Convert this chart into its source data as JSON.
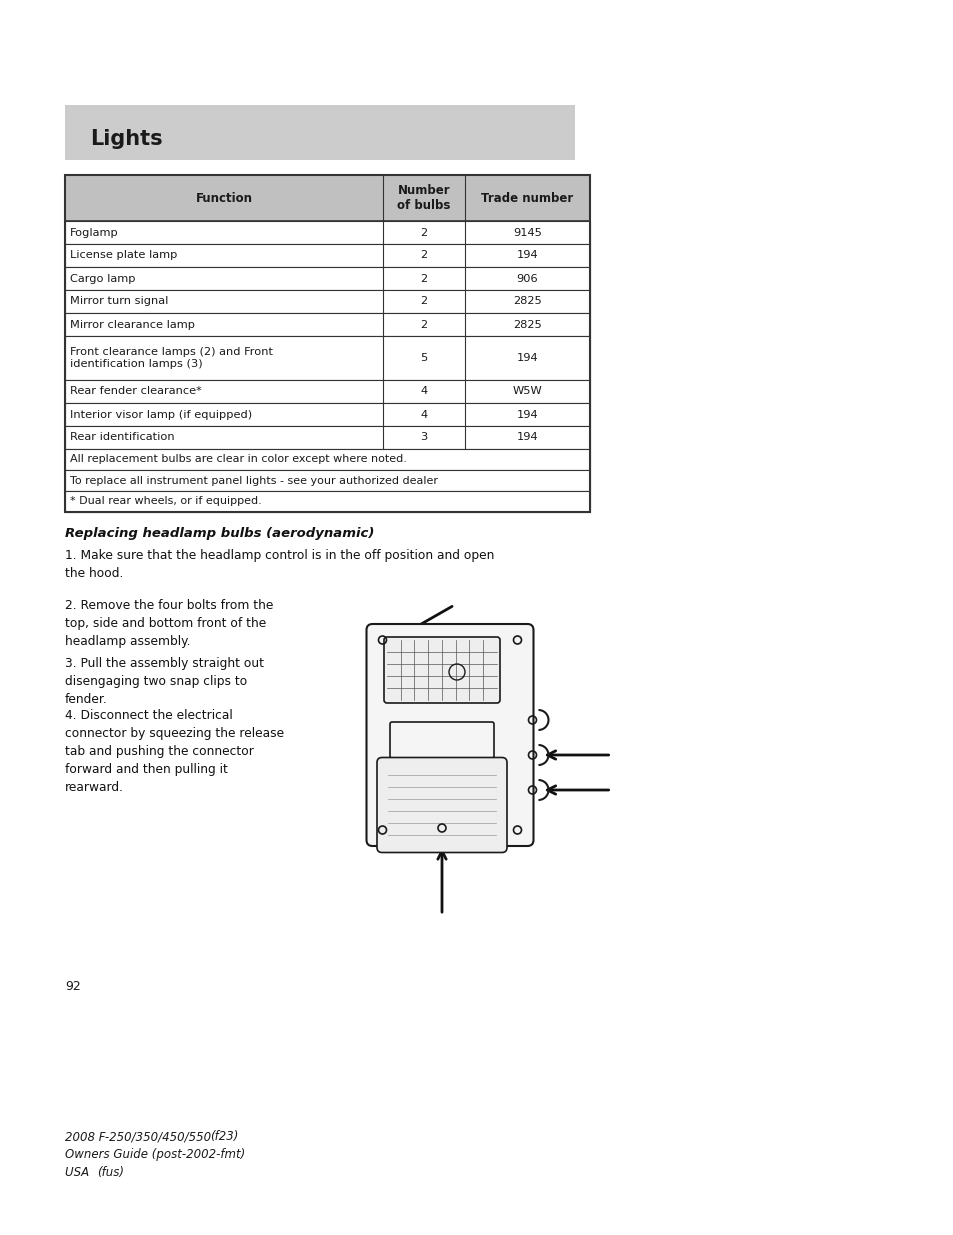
{
  "page_bg": "#ffffff",
  "header_bg": "#cccccc",
  "header_text": "Lights",
  "header_fontsize": 15,
  "table_header_bg": "#c0c0c0",
  "table_col_headers": [
    "Function",
    "Number\nof bulbs",
    "Trade number"
  ],
  "table_rows": [
    [
      "Foglamp",
      "2",
      "9145"
    ],
    [
      "License plate lamp",
      "2",
      "194"
    ],
    [
      "Cargo lamp",
      "2",
      "906"
    ],
    [
      "Mirror turn signal",
      "2",
      "2825"
    ],
    [
      "Mirror clearance lamp",
      "2",
      "2825"
    ],
    [
      "Front clearance lamps (2) and Front\nidentification lamps (3)",
      "5",
      "194"
    ],
    [
      "Rear fender clearance*",
      "4",
      "W5W"
    ],
    [
      "Interior visor lamp (if equipped)",
      "4",
      "194"
    ],
    [
      "Rear identification",
      "3",
      "194"
    ]
  ],
  "table_footnotes": [
    "All replacement bulbs are clear in color except where noted.",
    "To replace all instrument panel lights - see your authorized dealer",
    "* Dual rear wheels, or if equipped."
  ],
  "section_title": "Replacing headlamp bulbs (aerodynamic)",
  "para1": "1. Make sure that the headlamp control is in the off position and open\nthe hood.",
  "para2": "2. Remove the four bolts from the\ntop, side and bottom front of the\nheadlamp assembly.",
  "para3": "3. Pull the assembly straight out\ndisengaging two snap clips to\nfender.",
  "para4": "4. Disconnect the electrical\nconnector by squeezing the release\ntab and pushing the connector\nforward and then pulling it\nrearward.",
  "page_number": "92",
  "footer_line1": "2008 F-250/350/450/550 ",
  "footer_line1b": "(f23)",
  "footer_line2": "Owners Guide (post-2002-fmt)",
  "footer_line3": "USA ",
  "footer_line3b": "(fus)"
}
